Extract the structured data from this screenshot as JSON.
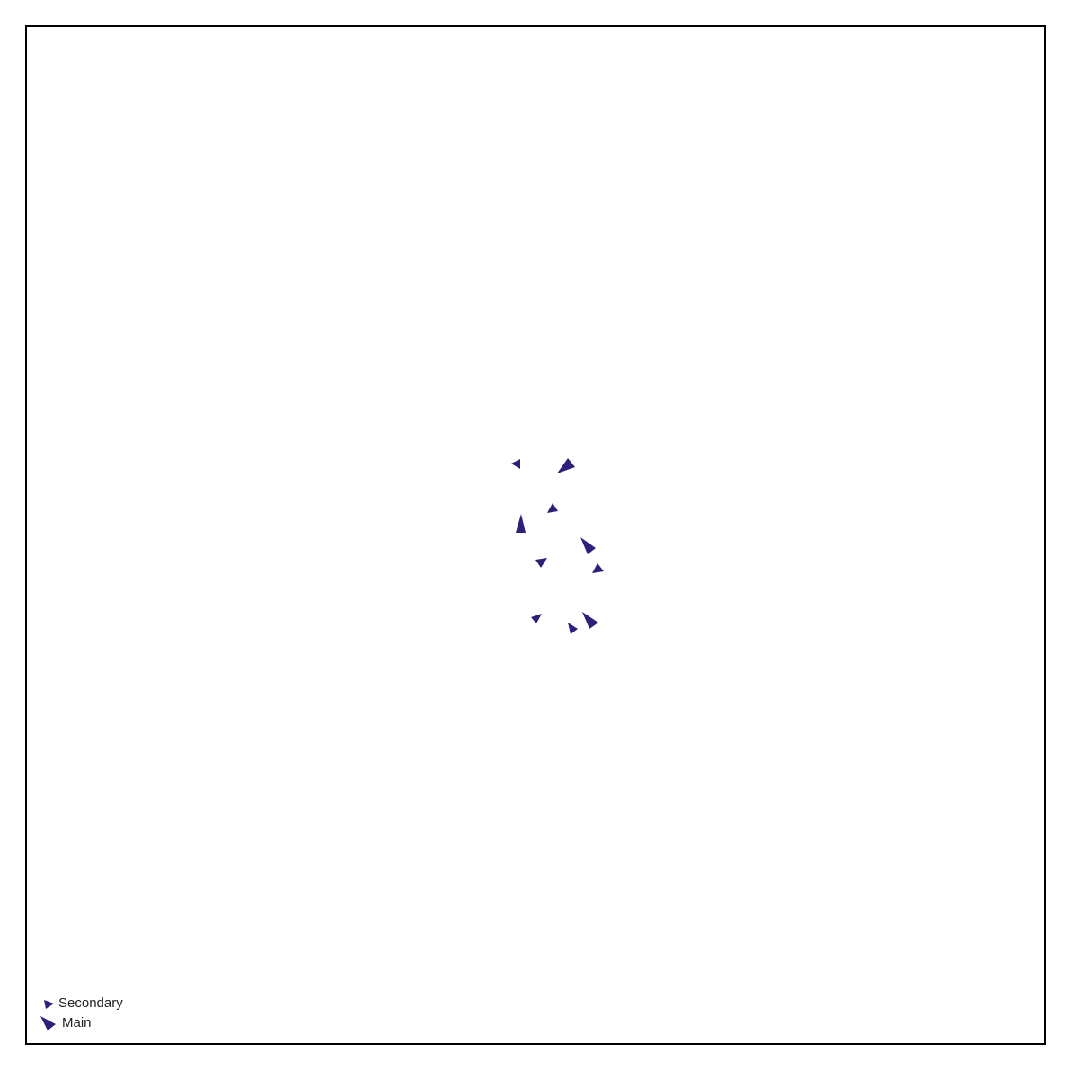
{
  "colors": {
    "marker": "#2d1f7a",
    "frame": "#000000",
    "background": "#ffffff"
  },
  "legend": {
    "placement": "bottom-left",
    "items": [
      {
        "id": "secondary",
        "label": "Secondary",
        "icon": "small-triangle-marker"
      },
      {
        "id": "main",
        "label": "Main",
        "icon": "large-triangle-marker"
      }
    ]
  },
  "markers": [
    {
      "kind": "secondary",
      "heading": "west-northwest"
    },
    {
      "kind": "main",
      "heading": "northeast"
    },
    {
      "kind": "secondary",
      "heading": "north"
    },
    {
      "kind": "main",
      "heading": "north"
    },
    {
      "kind": "main",
      "heading": "southeast"
    },
    {
      "kind": "secondary",
      "heading": "south-southwest"
    },
    {
      "kind": "secondary",
      "heading": "northeast"
    },
    {
      "kind": "secondary",
      "heading": "south-southwest"
    },
    {
      "kind": "secondary",
      "heading": "east-southeast"
    },
    {
      "kind": "main",
      "heading": "southeast"
    }
  ]
}
